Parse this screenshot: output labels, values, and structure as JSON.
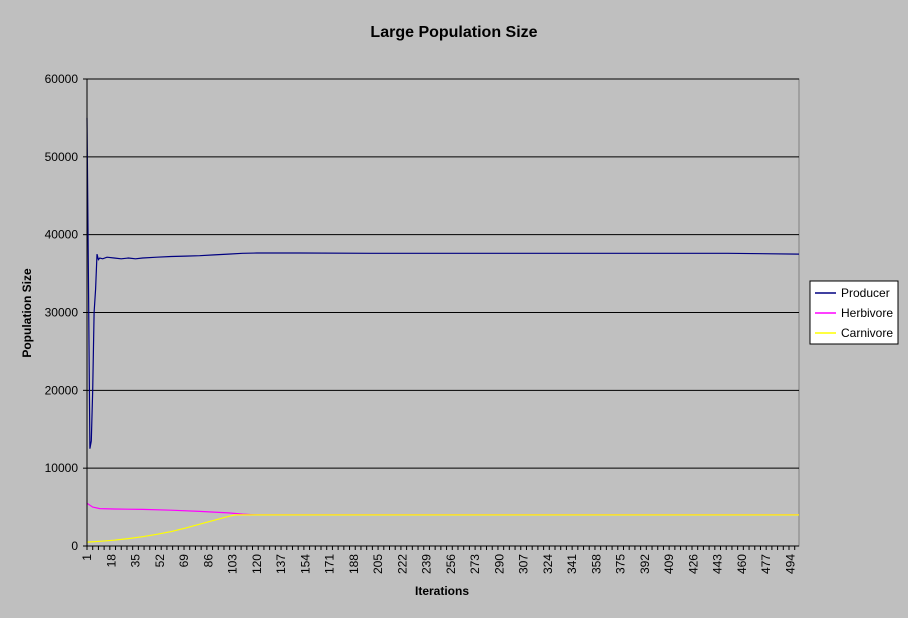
{
  "chart_data": {
    "type": "line",
    "title": "Large Population Size",
    "xlabel": "Iterations",
    "ylabel": "Population Size",
    "ylim": [
      0,
      60000
    ],
    "yticks": [
      0,
      10000,
      20000,
      30000,
      40000,
      50000,
      60000
    ],
    "xlim": [
      1,
      500
    ],
    "xtick_labels": [
      "1",
      "18",
      "35",
      "52",
      "69",
      "86",
      "103",
      "120",
      "137",
      "154",
      "171",
      "188",
      "205",
      "222",
      "239",
      "256",
      "273",
      "290",
      "307",
      "324",
      "341",
      "358",
      "375",
      "392",
      "409",
      "426",
      "443",
      "460",
      "477",
      "494"
    ],
    "grid": "horizontal",
    "legend_position": "right",
    "colors": {
      "plot_area": "#c0c0c0",
      "background": "#bfbfbf",
      "gridline": "#000000"
    },
    "series": [
      {
        "name": "Producer",
        "color": "#000080",
        "points": [
          [
            1,
            55000
          ],
          [
            2,
            35000
          ],
          [
            3,
            12500
          ],
          [
            4,
            13500
          ],
          [
            5,
            20000
          ],
          [
            6,
            30000
          ],
          [
            7,
            33000
          ],
          [
            8,
            37500
          ],
          [
            9,
            36800
          ],
          [
            10,
            37000
          ],
          [
            12,
            36900
          ],
          [
            15,
            37100
          ],
          [
            20,
            37000
          ],
          [
            25,
            36900
          ],
          [
            30,
            37000
          ],
          [
            35,
            36900
          ],
          [
            40,
            37000
          ],
          [
            50,
            37100
          ],
          [
            60,
            37200
          ],
          [
            70,
            37250
          ],
          [
            80,
            37300
          ],
          [
            90,
            37400
          ],
          [
            100,
            37500
          ],
          [
            110,
            37600
          ],
          [
            120,
            37650
          ],
          [
            150,
            37650
          ],
          [
            200,
            37600
          ],
          [
            250,
            37600
          ],
          [
            300,
            37600
          ],
          [
            350,
            37600
          ],
          [
            400,
            37600
          ],
          [
            450,
            37600
          ],
          [
            500,
            37500
          ]
        ]
      },
      {
        "name": "Herbivore",
        "color": "#ff00ff",
        "points": [
          [
            1,
            5500
          ],
          [
            5,
            5000
          ],
          [
            10,
            4800
          ],
          [
            20,
            4750
          ],
          [
            40,
            4700
          ],
          [
            60,
            4600
          ],
          [
            80,
            4450
          ],
          [
            100,
            4250
          ],
          [
            110,
            4100
          ],
          [
            120,
            4000
          ],
          [
            200,
            4000
          ],
          [
            300,
            4000
          ],
          [
            400,
            4000
          ],
          [
            500,
            4000
          ]
        ]
      },
      {
        "name": "Carnivore",
        "color": "#ffff00",
        "points": [
          [
            1,
            500
          ],
          [
            10,
            600
          ],
          [
            20,
            750
          ],
          [
            30,
            950
          ],
          [
            40,
            1200
          ],
          [
            50,
            1500
          ],
          [
            60,
            1850
          ],
          [
            70,
            2300
          ],
          [
            80,
            2800
          ],
          [
            90,
            3300
          ],
          [
            100,
            3800
          ],
          [
            105,
            4000
          ],
          [
            110,
            4000
          ],
          [
            200,
            4000
          ],
          [
            300,
            4000
          ],
          [
            400,
            4000
          ],
          [
            500,
            4000
          ]
        ]
      }
    ]
  }
}
